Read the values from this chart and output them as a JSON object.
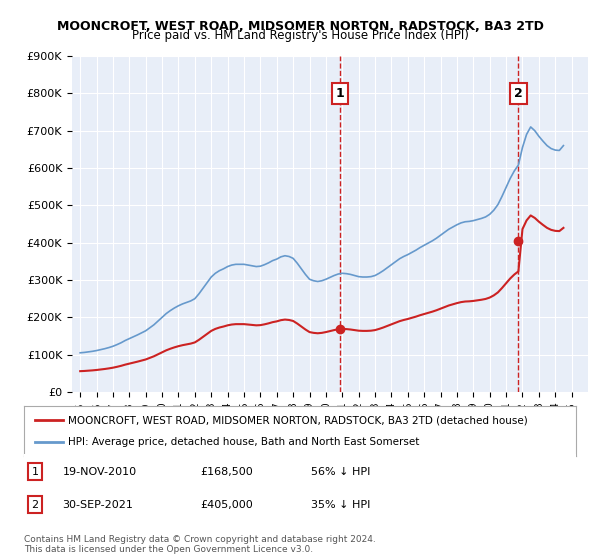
{
  "title": "MOONCROFT, WEST ROAD, MIDSOMER NORTON, RADSTOCK, BA3 2TD",
  "subtitle": "Price paid vs. HM Land Registry's House Price Index (HPI)",
  "background_color": "#e8eef8",
  "plot_bg_color": "#e8eef8",
  "ylim": [
    0,
    900000
  ],
  "yticks": [
    0,
    100000,
    200000,
    300000,
    400000,
    500000,
    600000,
    700000,
    800000,
    900000
  ],
  "ytick_labels": [
    "£0",
    "£100K",
    "£200K",
    "£300K",
    "£400K",
    "£500K",
    "£600K",
    "£700K",
    "£800K",
    "£900K"
  ],
  "xlim_start": 1995,
  "xlim_end": 2026,
  "xticks": [
    1995,
    1996,
    1997,
    1998,
    1999,
    2000,
    2001,
    2002,
    2003,
    2004,
    2005,
    2006,
    2007,
    2008,
    2009,
    2010,
    2011,
    2012,
    2013,
    2014,
    2015,
    2016,
    2017,
    2018,
    2019,
    2020,
    2021,
    2022,
    2023,
    2024,
    2025
  ],
  "hpi_color": "#6699cc",
  "sale_color": "#cc2222",
  "marker_color": "#cc2222",
  "vline_color": "#cc2222",
  "annotation_box_color": "#cc2222",
  "legend_label_sale": "MOONCROFT, WEST ROAD, MIDSOMER NORTON, RADSTOCK, BA3 2TD (detached house)",
  "legend_label_hpi": "HPI: Average price, detached house, Bath and North East Somerset",
  "sale1_x": 2010.88,
  "sale1_y": 168500,
  "sale1_label": "1",
  "sale2_x": 2021.75,
  "sale2_y": 405000,
  "sale2_label": "2",
  "annotation1": "1   19-NOV-2010      £168,500      56% ↓ HPI",
  "annotation2": "2   30-SEP-2021      £405,000      35% ↓ HPI",
  "footer": "Contains HM Land Registry data © Crown copyright and database right 2024.\nThis data is licensed under the Open Government Licence v3.0.",
  "hpi_years": [
    1995.0,
    1995.25,
    1995.5,
    1995.75,
    1996.0,
    1996.25,
    1996.5,
    1996.75,
    1997.0,
    1997.25,
    1997.5,
    1997.75,
    1998.0,
    1998.25,
    1998.5,
    1998.75,
    1999.0,
    1999.25,
    1999.5,
    1999.75,
    2000.0,
    2000.25,
    2000.5,
    2000.75,
    2001.0,
    2001.25,
    2001.5,
    2001.75,
    2002.0,
    2002.25,
    2002.5,
    2002.75,
    2003.0,
    2003.25,
    2003.5,
    2003.75,
    2004.0,
    2004.25,
    2004.5,
    2004.75,
    2005.0,
    2005.25,
    2005.5,
    2005.75,
    2006.0,
    2006.25,
    2006.5,
    2006.75,
    2007.0,
    2007.25,
    2007.5,
    2007.75,
    2008.0,
    2008.25,
    2008.5,
    2008.75,
    2009.0,
    2009.25,
    2009.5,
    2009.75,
    2010.0,
    2010.25,
    2010.5,
    2010.75,
    2011.0,
    2011.25,
    2011.5,
    2011.75,
    2012.0,
    2012.25,
    2012.5,
    2012.75,
    2013.0,
    2013.25,
    2013.5,
    2013.75,
    2014.0,
    2014.25,
    2014.5,
    2014.75,
    2015.0,
    2015.25,
    2015.5,
    2015.75,
    2016.0,
    2016.25,
    2016.5,
    2016.75,
    2017.0,
    2017.25,
    2017.5,
    2017.75,
    2018.0,
    2018.25,
    2018.5,
    2018.75,
    2019.0,
    2019.25,
    2019.5,
    2019.75,
    2020.0,
    2020.25,
    2020.5,
    2020.75,
    2021.0,
    2021.25,
    2021.5,
    2021.75,
    2022.0,
    2022.25,
    2022.5,
    2022.75,
    2023.0,
    2023.25,
    2023.5,
    2023.75,
    2024.0,
    2024.25,
    2024.5
  ],
  "hpi_values": [
    105000,
    106000,
    107500,
    109000,
    111000,
    113500,
    116000,
    119000,
    122500,
    127000,
    132000,
    138000,
    143000,
    148000,
    153000,
    158500,
    164000,
    172000,
    180000,
    190000,
    200000,
    210000,
    218000,
    225000,
    231000,
    236000,
    240000,
    244000,
    250000,
    263000,
    278000,
    293000,
    308000,
    318000,
    325000,
    330000,
    336000,
    340000,
    342000,
    342000,
    342000,
    340000,
    338000,
    336000,
    337000,
    341000,
    346000,
    352000,
    356000,
    362000,
    365000,
    363000,
    358000,
    345000,
    330000,
    315000,
    302000,
    298000,
    296000,
    298000,
    302000,
    307000,
    312000,
    316000,
    318000,
    317000,
    315000,
    312000,
    309000,
    308000,
    308000,
    309000,
    312000,
    318000,
    325000,
    333000,
    341000,
    349000,
    357000,
    363000,
    368000,
    374000,
    380000,
    387000,
    393000,
    399000,
    405000,
    412000,
    420000,
    428000,
    436000,
    442000,
    448000,
    453000,
    456000,
    457000,
    459000,
    462000,
    465000,
    469000,
    476000,
    487000,
    502000,
    524000,
    548000,
    572000,
    592000,
    608000,
    655000,
    690000,
    710000,
    700000,
    685000,
    672000,
    660000,
    652000,
    648000,
    647000,
    660000
  ],
  "sale_years": [
    2010.88,
    2021.75
  ],
  "sale_values": [
    168500,
    405000
  ]
}
